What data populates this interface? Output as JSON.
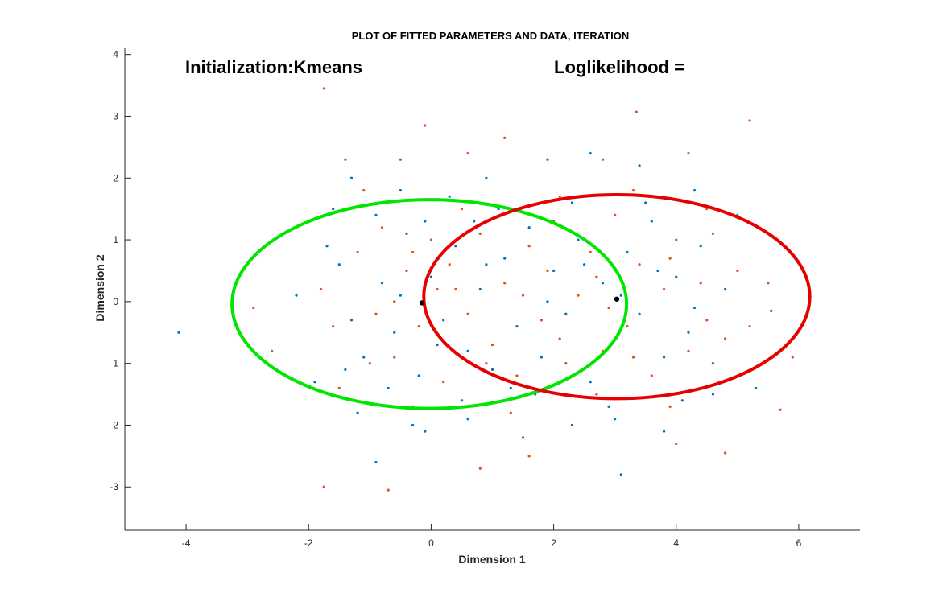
{
  "chart_data": {
    "type": "scatter",
    "title": "PLOT OF FITTED PARAMETERS AND DATA, ITERATION",
    "xlabel": "Dimension 1",
    "ylabel": "Dimension 2",
    "xlim": [
      -5,
      7
    ],
    "ylim": [
      -3.7,
      4.1
    ],
    "x_ticks": [
      -4,
      -2,
      0,
      2,
      4,
      6
    ],
    "y_ticks": [
      -3,
      -2,
      -1,
      0,
      1,
      2,
      3,
      4
    ],
    "x_tick_labels": [
      "-4",
      "-2",
      "0",
      "2",
      "4",
      "6"
    ],
    "y_tick_labels": [
      "-3",
      "-2",
      "-1",
      "0",
      "1",
      "2",
      "3",
      "4"
    ],
    "grid": false,
    "annotations": [
      {
        "text": "Initialization:Kmeans",
        "x": -4.1,
        "y": 3.75
      },
      {
        "text": "Loglikelihood =",
        "x": 1.95,
        "y": 3.75
      }
    ],
    "series": [
      {
        "kind": "points",
        "color": "#0072BD",
        "values": [
          [
            -4.12,
            -0.5
          ],
          [
            -2.2,
            0.1
          ],
          [
            -1.9,
            -1.3
          ],
          [
            -1.6,
            1.5
          ],
          [
            -1.3,
            2.0
          ],
          [
            -1.2,
            -1.8
          ],
          [
            -0.9,
            -2.6
          ],
          [
            -0.5,
            1.8
          ],
          [
            -0.3,
            -2.0
          ],
          [
            -0.1,
            -2.1
          ],
          [
            0.3,
            1.7
          ],
          [
            0.6,
            -1.9
          ],
          [
            0.9,
            2.0
          ],
          [
            1.5,
            -2.2
          ],
          [
            1.9,
            2.3
          ],
          [
            2.3,
            -2.0
          ],
          [
            2.6,
            2.4
          ],
          [
            3.0,
            -1.9
          ],
          [
            3.1,
            -2.8
          ],
          [
            3.4,
            2.2
          ],
          [
            3.8,
            -2.1
          ],
          [
            4.3,
            1.8
          ],
          [
            4.6,
            -1.5
          ],
          [
            5.0,
            1.4
          ],
          [
            5.3,
            -1.4
          ],
          [
            5.55,
            -0.15
          ],
          [
            -1.5,
            0.6
          ],
          [
            -1.1,
            -0.9
          ],
          [
            -0.8,
            0.3
          ],
          [
            -0.6,
            -0.5
          ],
          [
            -0.4,
            1.1
          ],
          [
            -0.2,
            -1.2
          ],
          [
            0.0,
            0.4
          ],
          [
            0.2,
            -0.3
          ],
          [
            0.4,
            0.9
          ],
          [
            0.6,
            -0.8
          ],
          [
            0.8,
            0.2
          ],
          [
            1.0,
            -1.1
          ],
          [
            1.2,
            0.7
          ],
          [
            1.4,
            -0.4
          ],
          [
            1.6,
            1.2
          ],
          [
            1.8,
            -0.9
          ],
          [
            2.0,
            0.5
          ],
          [
            2.2,
            -0.2
          ],
          [
            2.4,
            1.0
          ],
          [
            2.6,
            -1.3
          ],
          [
            2.8,
            0.3
          ],
          [
            3.0,
            -0.6
          ],
          [
            3.2,
            0.8
          ],
          [
            3.4,
            -0.2
          ],
          [
            3.6,
            1.3
          ],
          [
            3.8,
            -0.9
          ],
          [
            4.0,
            0.4
          ],
          [
            4.2,
            -0.5
          ],
          [
            4.4,
            0.9
          ],
          [
            4.6,
            -1.0
          ],
          [
            4.8,
            0.2
          ],
          [
            -1.3,
            -0.3
          ],
          [
            -0.7,
            -1.4
          ],
          [
            -0.1,
            1.3
          ],
          [
            0.5,
            -1.6
          ],
          [
            1.1,
            1.5
          ],
          [
            1.7,
            -1.5
          ],
          [
            2.3,
            1.6
          ],
          [
            2.9,
            -1.7
          ],
          [
            3.5,
            1.6
          ],
          [
            4.1,
            -1.6
          ],
          [
            -1.7,
            0.9
          ],
          [
            -1.4,
            -1.1
          ],
          [
            -0.9,
            1.4
          ],
          [
            0.7,
            1.3
          ],
          [
            1.3,
            -1.4
          ],
          [
            1.9,
            0.0
          ],
          [
            2.5,
            0.6
          ],
          [
            3.1,
            0.1
          ],
          [
            3.7,
            0.5
          ],
          [
            4.3,
            -0.1
          ],
          [
            -0.5,
            0.1
          ],
          [
            0.1,
            -0.7
          ],
          [
            0.9,
            0.6
          ]
        ]
      },
      {
        "kind": "points",
        "color": "#D95319",
        "values": [
          [
            -1.75,
            3.45
          ],
          [
            5.2,
            2.93
          ],
          [
            3.35,
            3.07
          ],
          [
            -0.1,
            2.85
          ],
          [
            1.2,
            2.65
          ],
          [
            -0.7,
            -3.05
          ],
          [
            -1.75,
            -3.0
          ],
          [
            -2.9,
            -0.1
          ],
          [
            -2.6,
            -0.8
          ],
          [
            5.9,
            -0.9
          ],
          [
            5.7,
            -1.75
          ],
          [
            4.8,
            -2.45
          ],
          [
            4.0,
            -2.3
          ],
          [
            0.8,
            -2.7
          ],
          [
            -1.4,
            2.3
          ],
          [
            -0.5,
            2.3
          ],
          [
            0.6,
            2.4
          ],
          [
            1.6,
            -2.5
          ],
          [
            2.8,
            2.3
          ],
          [
            4.2,
            2.4
          ],
          [
            5.0,
            0.5
          ],
          [
            5.5,
            0.3
          ],
          [
            -1.6,
            -0.4
          ],
          [
            -1.2,
            0.8
          ],
          [
            -1.0,
            -1.0
          ],
          [
            -0.8,
            1.2
          ],
          [
            -0.6,
            -0.9
          ],
          [
            -0.4,
            0.5
          ],
          [
            -0.2,
            -0.4
          ],
          [
            0.0,
            1.0
          ],
          [
            0.2,
            -1.3
          ],
          [
            0.4,
            0.2
          ],
          [
            0.6,
            -0.2
          ],
          [
            0.8,
            1.1
          ],
          [
            1.0,
            -0.7
          ],
          [
            1.2,
            0.3
          ],
          [
            1.4,
            -1.2
          ],
          [
            1.6,
            0.9
          ],
          [
            1.8,
            -0.3
          ],
          [
            2.0,
            1.3
          ],
          [
            2.2,
            -1.0
          ],
          [
            2.4,
            0.1
          ],
          [
            2.6,
            0.8
          ],
          [
            2.8,
            -0.8
          ],
          [
            3.0,
            1.4
          ],
          [
            3.2,
            -0.4
          ],
          [
            3.4,
            0.6
          ],
          [
            3.6,
            -1.2
          ],
          [
            3.8,
            0.2
          ],
          [
            4.0,
            1.0
          ],
          [
            4.2,
            -0.8
          ],
          [
            4.4,
            0.3
          ],
          [
            4.6,
            1.1
          ],
          [
            4.8,
            -0.6
          ],
          [
            5.2,
            -0.4
          ],
          [
            -1.1,
            1.8
          ],
          [
            -0.3,
            -1.7
          ],
          [
            0.5,
            1.5
          ],
          [
            1.3,
            -1.8
          ],
          [
            2.1,
            1.7
          ],
          [
            2.7,
            -1.5
          ],
          [
            3.3,
            1.8
          ],
          [
            3.9,
            -1.7
          ],
          [
            4.5,
            1.5
          ],
          [
            -1.8,
            0.2
          ],
          [
            -1.5,
            -1.4
          ],
          [
            -0.9,
            -0.2
          ],
          [
            -0.3,
            0.8
          ],
          [
            0.3,
            0.6
          ],
          [
            0.9,
            -1.0
          ],
          [
            1.5,
            0.1
          ],
          [
            2.1,
            -0.6
          ],
          [
            2.7,
            0.4
          ],
          [
            3.3,
            -0.9
          ],
          [
            3.9,
            0.7
          ],
          [
            4.5,
            -0.3
          ],
          [
            -0.6,
            0.0
          ],
          [
            0.1,
            0.2
          ],
          [
            1.9,
            0.5
          ],
          [
            2.9,
            -0.1
          ]
        ]
      },
      {
        "kind": "ellipse",
        "color": "#00E600",
        "center": [
          -0.03,
          -0.04
        ],
        "radii": [
          3.22,
          1.69
        ]
      },
      {
        "kind": "ellipse",
        "color": "#E60000",
        "center": [
          3.03,
          0.08
        ],
        "radii": [
          3.15,
          1.65
        ]
      },
      {
        "kind": "centers",
        "color": "#000000",
        "values": [
          [
            -0.15,
            -0.02
          ],
          [
            3.03,
            0.04
          ]
        ]
      }
    ]
  }
}
